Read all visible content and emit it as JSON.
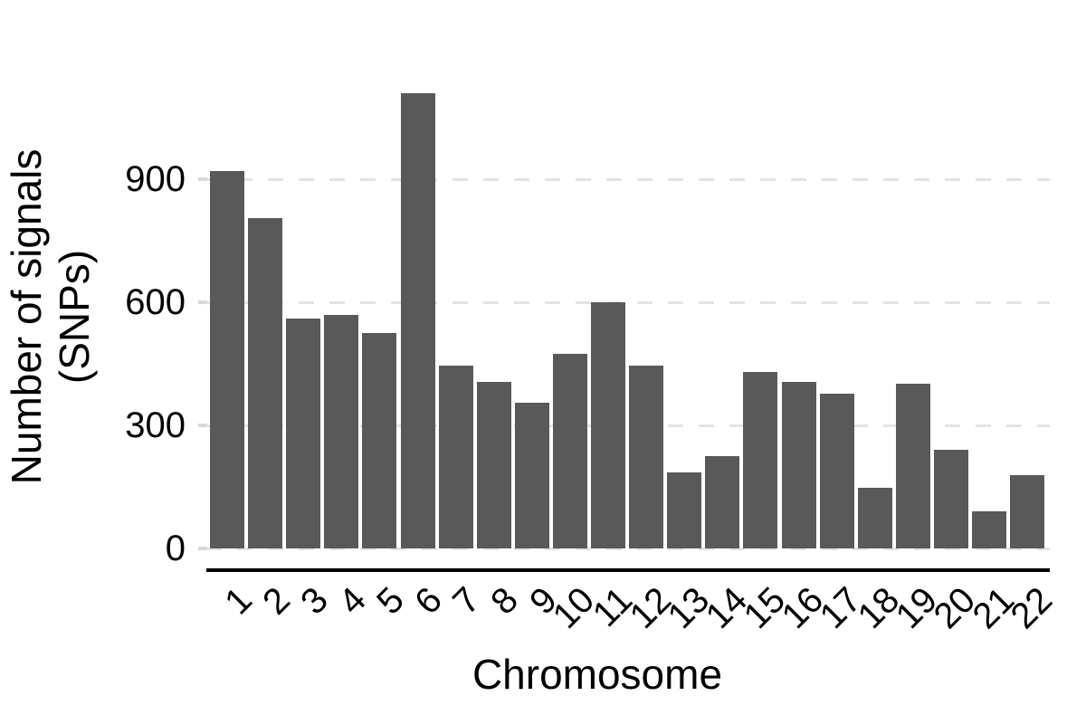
{
  "chart_data": {
    "type": "bar",
    "title": "",
    "xlabel": "Chromosome",
    "ylabel": "Number of signals (SNPs)",
    "ylabel_lines": [
      "Number of signals",
      "(SNPs)"
    ],
    "categories": [
      "1",
      "2",
      "3",
      "4",
      "5",
      "6",
      "7",
      "8",
      "9",
      "10",
      "11",
      "12",
      "13",
      "14",
      "15",
      "16",
      "17",
      "18",
      "19",
      "20",
      "21",
      "22"
    ],
    "values": [
      920,
      805,
      560,
      570,
      525,
      1110,
      445,
      405,
      355,
      475,
      600,
      445,
      185,
      225,
      430,
      405,
      378,
      148,
      402,
      240,
      90,
      178
    ],
    "yticks": [
      0,
      300,
      600,
      900
    ],
    "ytick_labels": [
      "0",
      "300",
      "600",
      "900"
    ],
    "ylim": [
      0,
      1150
    ],
    "grid": "horizontal-dashed",
    "legend": "none",
    "colors": {
      "bar": "#595959",
      "gridline": "#e3e3e3",
      "tick_mark": "#d8d8d8",
      "axis_line": "#000000",
      "text": "#000000",
      "background": "#ffffff"
    }
  }
}
